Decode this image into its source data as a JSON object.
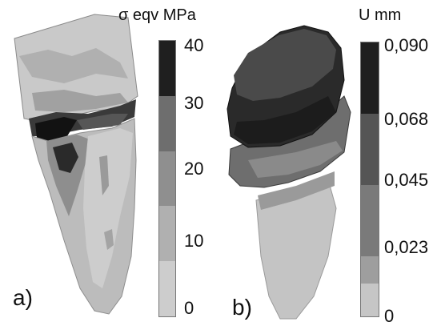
{
  "panel_a": {
    "label": "a)",
    "legend": {
      "title": "σ eqv MPa",
      "ticks": [
        "40",
        "30",
        "20",
        "10",
        "0"
      ],
      "colors": [
        "#1f1f1f",
        "#6e6e6e",
        "#8f8f8f",
        "#b0b0b0",
        "#cdcdcd"
      ]
    }
  },
  "panel_b": {
    "label": "b)",
    "legend": {
      "title": "U mm",
      "ticks": [
        "0,090",
        "0,068",
        "0,045",
        "0,023",
        "0"
      ],
      "colors": [
        "#1f1f1f",
        "#555555",
        "#7a7a7a",
        "#9e9e9e",
        "#c6c6c6"
      ]
    }
  }
}
